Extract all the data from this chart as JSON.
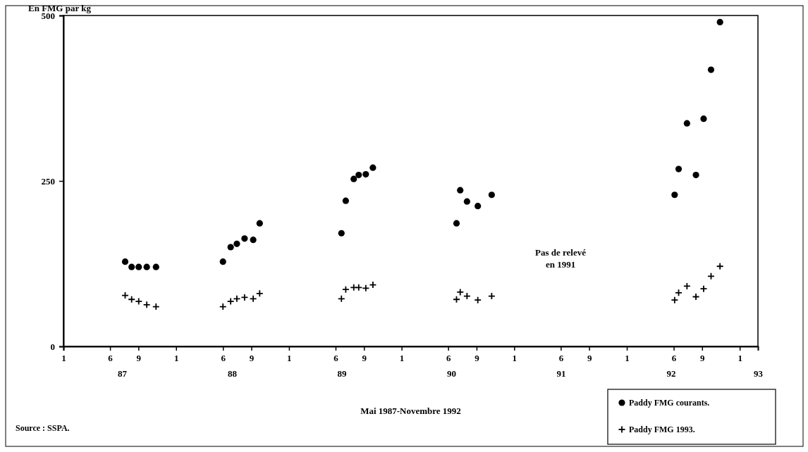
{
  "chart_data": {
    "type": "scatter",
    "ylabel": "En FMG par kg",
    "xlabel": "Mai 1987-Novembre 1992",
    "annotations": [
      "Pas de relevé\nen 1991",
      "Source : SSPA."
    ],
    "xlim": [
      "1987-01",
      "1993-03"
    ],
    "xticks": [
      {
        "value": "1987-01",
        "label": "1"
      },
      {
        "value": "1987-06",
        "label": "6"
      },
      {
        "value": "1987-09",
        "label": "9"
      },
      {
        "value": "1988-01",
        "label": "1"
      },
      {
        "value": "1988-06",
        "label": "6"
      },
      {
        "value": "1988-09",
        "label": "9"
      },
      {
        "value": "1989-01",
        "label": "1"
      },
      {
        "value": "1989-06",
        "label": "6"
      },
      {
        "value": "1989-09",
        "label": "9"
      },
      {
        "value": "1990-01",
        "label": "1"
      },
      {
        "value": "1990-06",
        "label": "6"
      },
      {
        "value": "1990-09",
        "label": "9"
      },
      {
        "value": "1991-01",
        "label": "1"
      },
      {
        "value": "1991-06",
        "label": "6"
      },
      {
        "value": "1991-09",
        "label": "9"
      },
      {
        "value": "1992-01",
        "label": "1"
      },
      {
        "value": "1992-06",
        "label": "6"
      },
      {
        "value": "1992-09",
        "label": "9"
      },
      {
        "value": "1993-01",
        "label": "1"
      }
    ],
    "x2lim": [
      "1987-01",
      "1993-05"
    ],
    "x2ticks": [
      {
        "value": "1987-07-15",
        "label": "87"
      },
      {
        "value": "1988-07-15",
        "label": "88"
      },
      {
        "value": "1989-07-15",
        "label": "89"
      },
      {
        "value": "1990-07-15",
        "label": "90"
      },
      {
        "value": "1991-07-15",
        "label": "91"
      },
      {
        "value": "1992-07-15",
        "label": "92"
      },
      {
        "value": "1993-05-01",
        "label": "93"
      }
    ],
    "ylim": [
      0,
      500
    ],
    "yticks": [
      0,
      250,
      500
    ],
    "x": [
      "1987-07-20",
      "1987-08-10",
      "1987-09-02",
      "1987-09-28",
      "1987-10-28",
      "1988-06-01",
      "1988-06-26",
      "1988-07-16",
      "1988-08-10",
      "1988-09-07",
      "1988-09-28",
      "1989-06-20",
      "1989-07-04",
      "1989-07-30",
      "1989-08-15",
      "1989-09-07",
      "1989-09-30",
      "1990-06-28",
      "1990-07-10",
      "1990-08-01",
      "1990-09-05",
      "1990-10-20",
      "1992-06-04",
      "1992-06-17",
      "1992-07-14",
      "1992-08-12",
      "1992-09-06",
      "1992-09-30",
      "1992-10-29"
    ],
    "series": [
      {
        "name": "Paddy FMG courants.",
        "color": "#000000",
        "marker": "circle",
        "values": [
          128,
          120,
          120,
          120,
          120,
          128,
          150,
          155,
          163,
          161,
          186,
          171,
          220,
          253,
          259,
          260,
          270,
          186,
          236,
          219,
          212,
          229,
          229,
          268,
          337,
          259,
          344,
          418,
          490
        ]
      },
      {
        "name": "Paddy FMG 1993.",
        "color": "#000000",
        "marker": "cross",
        "values": [
          77,
          71,
          68,
          63,
          60,
          60,
          68,
          72,
          74,
          72,
          80,
          72,
          86,
          89,
          89,
          88,
          93,
          71,
          82,
          76,
          70,
          76,
          70,
          81,
          91,
          75,
          87,
          106,
          121
        ]
      }
    ],
    "grid": false,
    "legend": "bottom right"
  }
}
